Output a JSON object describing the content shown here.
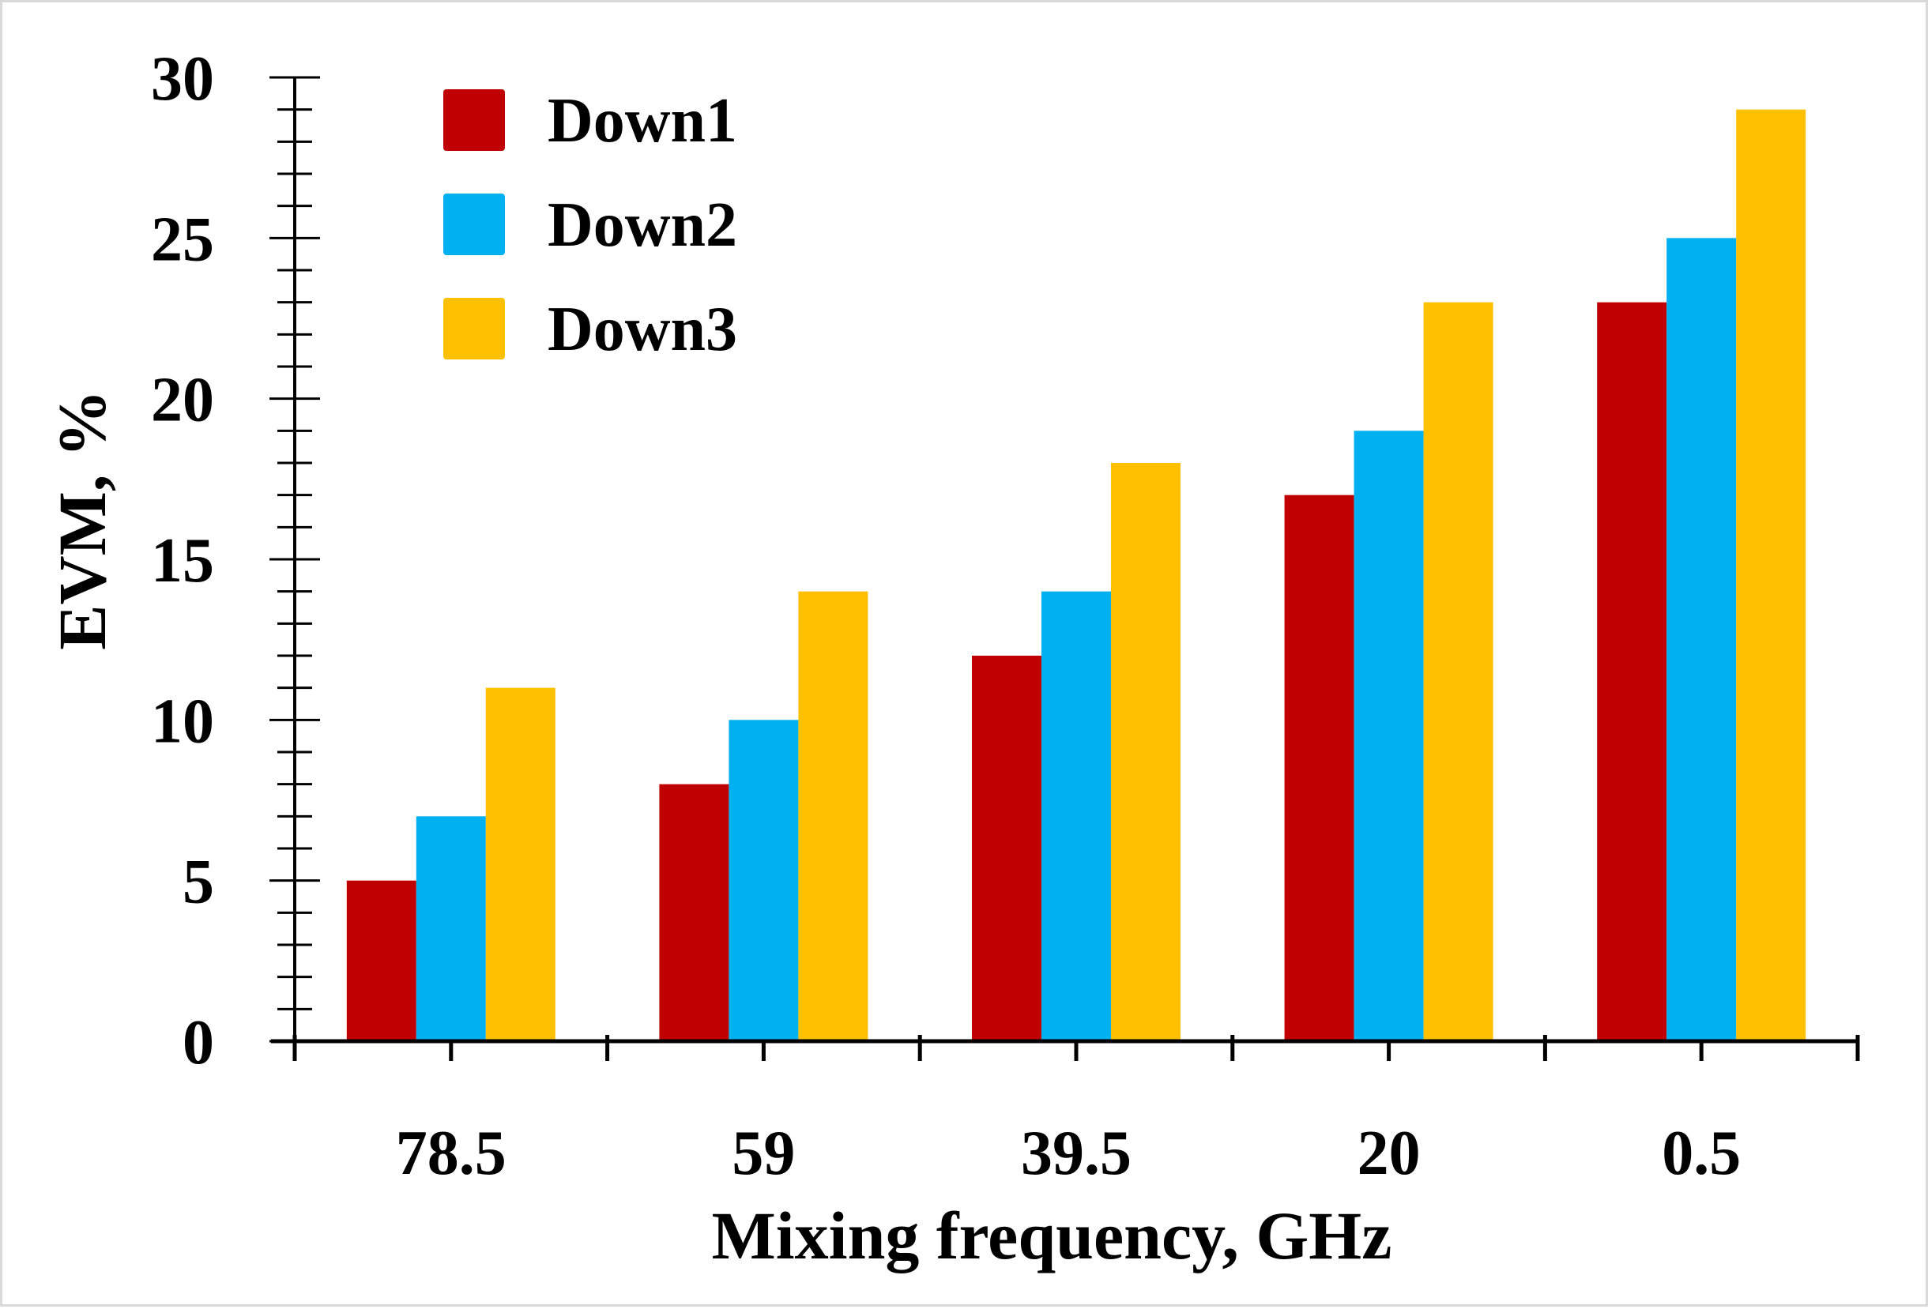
{
  "chart_data": {
    "type": "bar",
    "title": "",
    "xlabel": "Mixing frequency, GHz",
    "ylabel": "EVM, %",
    "categories": [
      "78.5",
      "59",
      "39.5",
      "20",
      "0.5"
    ],
    "series": [
      {
        "name": "Down1",
        "color": "#c00000",
        "values": [
          5,
          8,
          12,
          17,
          23
        ]
      },
      {
        "name": "Down2",
        "color": "#00b0f0",
        "values": [
          7,
          10,
          14,
          19,
          25
        ]
      },
      {
        "name": "Down3",
        "color": "#ffc000",
        "values": [
          11,
          14,
          18,
          23,
          29
        ]
      }
    ],
    "ylim": [
      0,
      30
    ],
    "yticks": [
      "0",
      "5",
      "10",
      "15",
      "20",
      "25",
      "30"
    ],
    "grid": false,
    "legend_position": "top-left"
  }
}
